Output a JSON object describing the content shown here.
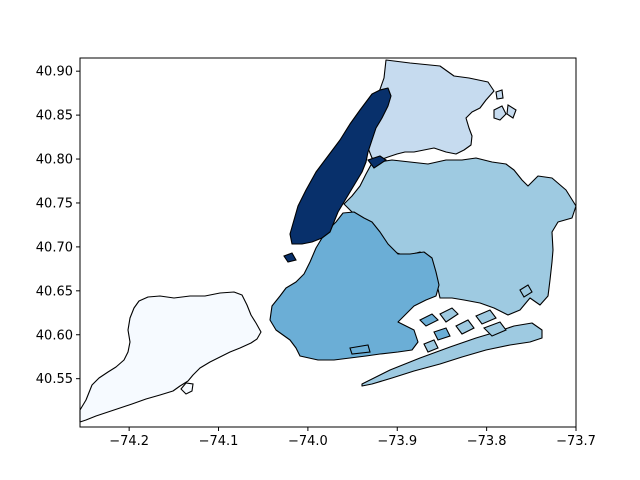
{
  "chart_data": {
    "type": "map",
    "xlim": [
      -74.255,
      -73.7
    ],
    "ylim": [
      40.495,
      40.915
    ],
    "x_ticks": [
      {
        "value": -74.2,
        "label": "−74.2"
      },
      {
        "value": -74.1,
        "label": "−74.1"
      },
      {
        "value": -74.0,
        "label": "−74.0"
      },
      {
        "value": -73.9,
        "label": "−73.9"
      },
      {
        "value": -73.8,
        "label": "−73.8"
      },
      {
        "value": -73.7,
        "label": "−73.7"
      }
    ],
    "y_ticks": [
      {
        "value": 40.55,
        "label": "40.55"
      },
      {
        "value": 40.6,
        "label": "40.60"
      },
      {
        "value": 40.65,
        "label": "40.65"
      },
      {
        "value": 40.7,
        "label": "40.70"
      },
      {
        "value": 40.75,
        "label": "40.75"
      },
      {
        "value": 40.8,
        "label": "40.80"
      },
      {
        "value": 40.85,
        "label": "40.85"
      },
      {
        "value": 40.9,
        "label": "40.90"
      }
    ],
    "regions": [
      {
        "id": "staten-island",
        "color": "#f6faff"
      },
      {
        "id": "bronx",
        "color": "#c6dbef"
      },
      {
        "id": "queens",
        "color": "#9ecae1"
      },
      {
        "id": "brooklyn",
        "color": "#6baed6"
      },
      {
        "id": "manhattan",
        "color": "#08306b"
      }
    ]
  }
}
